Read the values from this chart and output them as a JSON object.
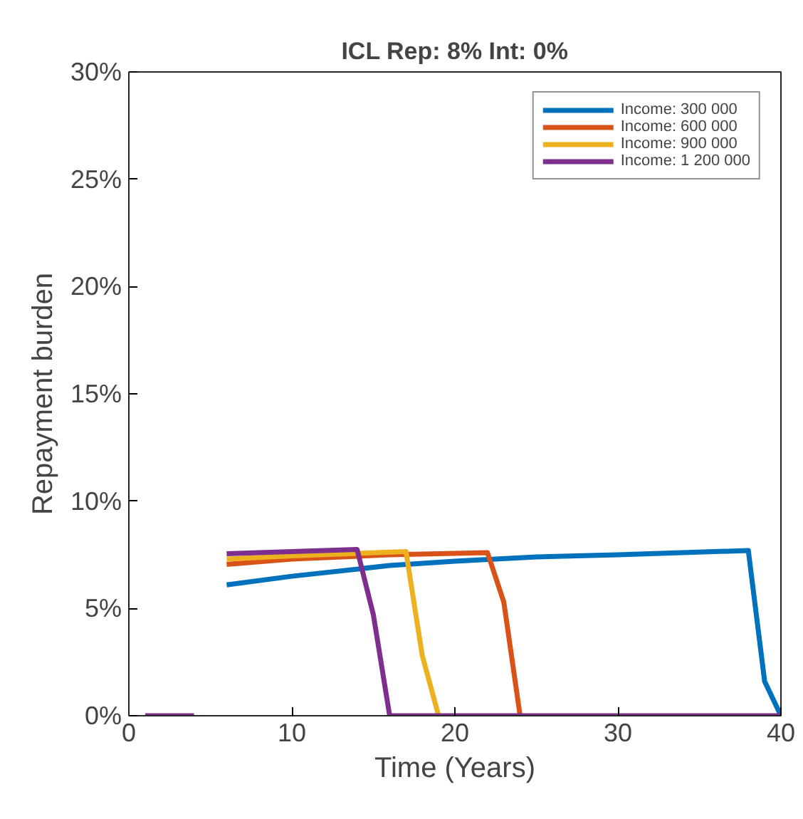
{
  "chart_data": {
    "type": "line",
    "title": "ICL Rep: 8% Int: 0%",
    "xlabel": "Time (Years)",
    "ylabel": "Repayment burden",
    "xlim": [
      0,
      40
    ],
    "xticks": [
      0,
      10,
      20,
      30,
      40
    ],
    "ylim": [
      0,
      30
    ],
    "yticks": [
      {
        "value": 0,
        "label": "0%"
      },
      {
        "value": 5,
        "label": "5%"
      },
      {
        "value": 10,
        "label": "10%"
      },
      {
        "value": 15,
        "label": "15%"
      },
      {
        "value": 20,
        "label": "20%"
      },
      {
        "value": 25,
        "label": "25%"
      },
      {
        "value": 30,
        "label": "30%"
      }
    ],
    "grid": false,
    "legend": "top right",
    "marker": "none",
    "line_style": "solid",
    "series": [
      {
        "name": "Income: 300 000",
        "color": "#0072bd",
        "x": [
          6,
          10,
          16,
          20,
          25,
          30,
          38,
          39,
          40
        ],
        "values": [
          6.1,
          6.5,
          7.0,
          7.2,
          7.4,
          7.5,
          7.7,
          1.6,
          0
        ]
      },
      {
        "name": "Income: 600 000",
        "color": "#d95319",
        "x": [
          6,
          10,
          16,
          22,
          23,
          24
        ],
        "values": [
          7.05,
          7.3,
          7.5,
          7.6,
          5.3,
          0
        ]
      },
      {
        "name": "Income: 900 000",
        "color": "#edb120",
        "x": [
          6,
          10,
          17,
          18,
          19
        ],
        "values": [
          7.3,
          7.45,
          7.65,
          2.8,
          0
        ]
      },
      {
        "name": "Income: 1 200 000",
        "color": "#7e2f8e",
        "x": [
          1,
          4,
          5,
          6,
          14,
          15,
          16,
          40
        ],
        "values": [
          0,
          0,
          null,
          7.55,
          7.75,
          4.7,
          0,
          0
        ]
      }
    ]
  }
}
